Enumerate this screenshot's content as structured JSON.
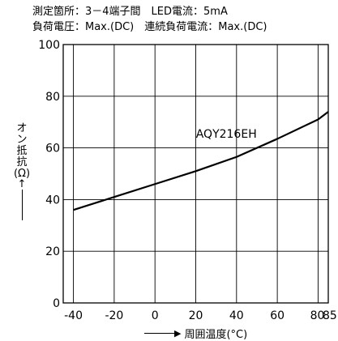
{
  "conditions": {
    "line1": "測定箇所：3－4端子間　LED電流：5mA",
    "line2": "負荷電圧：Max.(DC)　連続負荷電流：Max.(DC)"
  },
  "chart_data": {
    "type": "line",
    "title": "",
    "xlabel": "周囲温度(°C)",
    "ylabel": "オン抵抗(Ω)",
    "xlim": [
      -45,
      85
    ],
    "ylim": [
      0,
      100
    ],
    "x_ticks": [
      -40,
      -20,
      0,
      20,
      40,
      60,
      80,
      85
    ],
    "x_tick_labels": [
      "-40",
      "-20",
      "0",
      "20",
      "40",
      "60",
      "80",
      "85"
    ],
    "y_ticks": [
      0,
      20,
      40,
      60,
      80,
      100
    ],
    "grid": true,
    "series": [
      {
        "name": "AQY216EH",
        "x": [
          -40,
          -20,
          0,
          20,
          40,
          60,
          80,
          85
        ],
        "y": [
          36,
          41,
          46,
          51,
          56.5,
          63.5,
          71,
          74
        ]
      }
    ]
  }
}
